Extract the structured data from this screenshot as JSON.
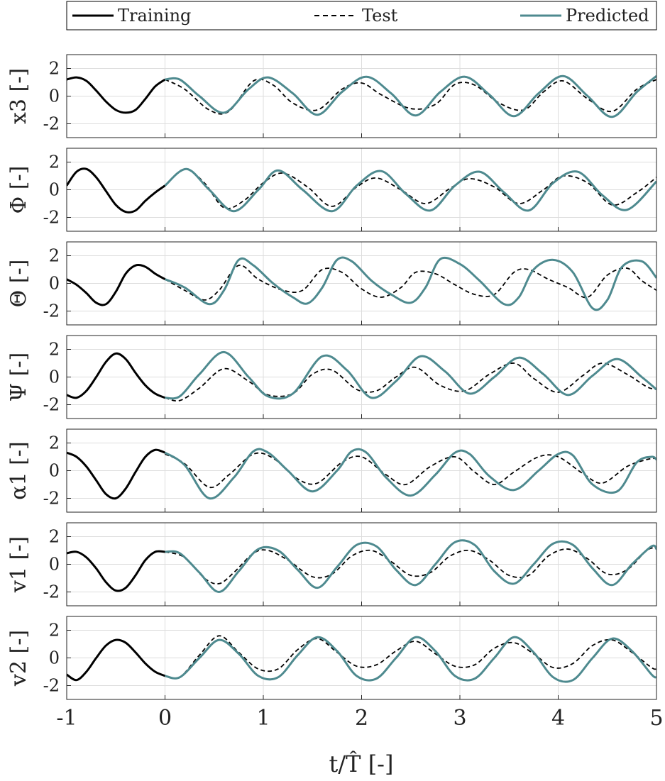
{
  "legend": {
    "entries": [
      {
        "label": "Training",
        "style": "solid",
        "color": "#000000"
      },
      {
        "label": "Test",
        "style": "dashed",
        "color": "#000000"
      },
      {
        "label": "Predicted",
        "style": "solid",
        "color": "#4e8a8f"
      }
    ]
  },
  "colors": {
    "training": "#000000",
    "test": "#000000",
    "predicted": "#4e8a8f",
    "grid": "#dddddd"
  },
  "chart_data": {
    "type": "line",
    "xlabel": "t/T̂ [-]",
    "xlim": [
      -1,
      5
    ],
    "xticks": [
      -1,
      0,
      1,
      2,
      3,
      4,
      5
    ],
    "xtick_labels": [
      "-1",
      "0",
      "1",
      "2",
      "3",
      "4",
      "5"
    ],
    "grid": true,
    "legend_placement": "top",
    "panels": [
      {
        "ylabel": "x3 [-]",
        "ylim": [
          -3,
          3
        ],
        "yticks": [
          -2,
          0,
          2
        ],
        "ytick_labels": [
          "-2",
          "0",
          "2"
        ],
        "training": {
          "x": [
            -1,
            -0.9,
            -0.8,
            -0.7,
            -0.6,
            -0.5,
            -0.4,
            -0.3,
            -0.2,
            -0.1,
            0
          ],
          "y": [
            1.2,
            1.35,
            1.1,
            0.4,
            -0.4,
            -1.0,
            -1.2,
            -1.0,
            -0.2,
            0.7,
            1.2
          ]
        },
        "test": {
          "x": [
            0,
            0.2,
            0.45,
            0.65,
            0.9,
            1.1,
            1.3,
            1.55,
            1.8,
            2.0,
            2.2,
            2.5,
            2.75,
            2.95,
            3.15,
            3.4,
            3.65,
            3.85,
            4.05,
            4.3,
            4.55,
            4.8,
            5.0
          ],
          "y": [
            1.2,
            0.5,
            -1.0,
            -1.1,
            1.1,
            0.8,
            -0.5,
            -1.0,
            0.5,
            0.95,
            0.1,
            -0.9,
            -0.6,
            0.85,
            0.8,
            -0.5,
            -1.0,
            0.3,
            1.1,
            -0.2,
            -1.1,
            0.5,
            1.2
          ]
        },
        "predicted": {
          "x": [
            0,
            0.15,
            0.35,
            0.6,
            0.85,
            1.05,
            1.3,
            1.55,
            1.8,
            2.05,
            2.3,
            2.55,
            2.8,
            3.05,
            3.3,
            3.55,
            3.8,
            4.05,
            4.3,
            4.55,
            4.8,
            5.0
          ],
          "y": [
            1.2,
            1.2,
            0.0,
            -1.2,
            0.5,
            1.35,
            0.2,
            -1.35,
            0.3,
            1.4,
            0.2,
            -1.4,
            0.3,
            1.4,
            0.1,
            -1.45,
            0.2,
            1.45,
            0.0,
            -1.5,
            0.3,
            1.45
          ]
        }
      },
      {
        "ylabel": "Φ [-]",
        "ylim": [
          -3,
          3
        ],
        "yticks": [
          -2,
          0,
          2
        ],
        "ytick_labels": [
          "-2",
          "0",
          "2"
        ],
        "training": {
          "x": [
            -1,
            -0.9,
            -0.8,
            -0.7,
            -0.6,
            -0.5,
            -0.4,
            -0.3,
            -0.2,
            -0.1,
            0
          ],
          "y": [
            0.3,
            1.3,
            1.5,
            0.9,
            -0.1,
            -1.1,
            -1.6,
            -1.5,
            -0.8,
            -0.2,
            0.3
          ]
        },
        "test": {
          "x": [
            0,
            0.2,
            0.4,
            0.6,
            0.8,
            1.0,
            1.2,
            1.45,
            1.7,
            1.95,
            2.15,
            2.4,
            2.65,
            2.9,
            3.1,
            3.35,
            3.6,
            3.85,
            4.05,
            4.3,
            4.55,
            4.8,
            5.0
          ],
          "y": [
            0.3,
            1.5,
            0.5,
            -1.3,
            -0.8,
            0.5,
            1.2,
            0.2,
            -1.2,
            0.2,
            0.85,
            0.0,
            -1.0,
            0.1,
            0.8,
            0.2,
            -1.0,
            0.0,
            1.0,
            0.5,
            -1.1,
            -0.2,
            0.9
          ]
        },
        "predicted": {
          "x": [
            0,
            0.22,
            0.45,
            0.7,
            0.95,
            1.15,
            1.4,
            1.7,
            1.95,
            2.2,
            2.45,
            2.7,
            2.95,
            3.2,
            3.45,
            3.7,
            3.95,
            4.2,
            4.45,
            4.7,
            5.0
          ],
          "y": [
            0.3,
            1.5,
            0.0,
            -1.55,
            0.0,
            1.4,
            0.0,
            -1.55,
            0.3,
            1.35,
            -0.3,
            -1.5,
            0.3,
            1.3,
            -0.2,
            -1.5,
            0.5,
            1.3,
            -0.4,
            -1.45,
            0.6
          ]
        }
      },
      {
        "ylabel": "Θ [-]",
        "ylim": [
          -3,
          3
        ],
        "yticks": [
          -2,
          0,
          2
        ],
        "ytick_labels": [
          "-2",
          "0",
          "2"
        ],
        "training": {
          "x": [
            -1,
            -0.9,
            -0.8,
            -0.7,
            -0.6,
            -0.5,
            -0.4,
            -0.3,
            -0.2,
            -0.1,
            0
          ],
          "y": [
            0.3,
            -0.1,
            -0.7,
            -1.4,
            -1.5,
            -0.6,
            0.7,
            1.3,
            1.2,
            0.7,
            0.3
          ]
        },
        "test": {
          "x": [
            0,
            0.2,
            0.4,
            0.55,
            0.75,
            0.95,
            1.2,
            1.4,
            1.6,
            1.8,
            2.0,
            2.2,
            2.4,
            2.55,
            2.75,
            2.95,
            3.15,
            3.35,
            3.55,
            3.7,
            3.9,
            4.1,
            4.3,
            4.5,
            4.7,
            4.85,
            5.0
          ],
          "y": [
            0.3,
            -0.5,
            -1.2,
            -0.5,
            1.3,
            0.3,
            -0.5,
            -0.5,
            1.0,
            0.8,
            -0.4,
            -1.0,
            -0.3,
            0.8,
            0.7,
            -0.1,
            -0.8,
            -0.8,
            0.8,
            1.0,
            0.3,
            -0.3,
            -1.0,
            0.6,
            1.1,
            0.2,
            -0.5
          ]
        },
        "predicted": {
          "x": [
            0,
            0.2,
            0.45,
            0.6,
            0.75,
            0.9,
            1.1,
            1.3,
            1.45,
            1.6,
            1.75,
            1.9,
            2.1,
            2.3,
            2.5,
            2.65,
            2.8,
            3.0,
            3.2,
            3.45,
            3.6,
            3.75,
            3.95,
            4.15,
            4.35,
            4.5,
            4.65,
            4.85,
            5.0
          ],
          "y": [
            0.3,
            -0.3,
            -1.5,
            -0.5,
            1.7,
            1.3,
            0.0,
            -1.0,
            -1.45,
            -0.3,
            1.7,
            1.6,
            0.2,
            -0.8,
            -1.4,
            -0.3,
            1.75,
            1.4,
            0.2,
            -1.5,
            -1.0,
            1.0,
            1.7,
            0.8,
            -1.8,
            -1.2,
            1.2,
            1.6,
            0.4
          ]
        }
      },
      {
        "ylabel": "Ψ [-]",
        "ylim": [
          -3,
          3
        ],
        "yticks": [
          -2,
          0,
          2
        ],
        "ytick_labels": [
          "-2",
          "0",
          "2"
        ],
        "training": {
          "x": [
            -1,
            -0.9,
            -0.8,
            -0.7,
            -0.6,
            -0.5,
            -0.4,
            -0.3,
            -0.2,
            -0.1,
            0
          ],
          "y": [
            -1.3,
            -1.5,
            -1.0,
            0.0,
            1.1,
            1.7,
            1.3,
            0.3,
            -0.6,
            -1.2,
            -1.5
          ]
        },
        "test": {
          "x": [
            0,
            0.15,
            0.35,
            0.6,
            0.85,
            1.05,
            1.3,
            1.5,
            1.7,
            1.95,
            2.15,
            2.35,
            2.55,
            2.8,
            3.05,
            3.3,
            3.55,
            3.75,
            4.0,
            4.25,
            4.45,
            4.7,
            4.9,
            5.0
          ],
          "y": [
            -1.5,
            -1.7,
            -0.8,
            0.6,
            -0.3,
            -1.3,
            -1.2,
            0.2,
            0.5,
            -0.9,
            -1.0,
            0.0,
            0.7,
            -0.6,
            -1.0,
            0.2,
            1.0,
            -0.1,
            -1.1,
            0.1,
            1.0,
            0.2,
            -0.7,
            -0.9
          ]
        },
        "predicted": {
          "x": [
            0,
            0.15,
            0.35,
            0.6,
            0.85,
            1.05,
            1.3,
            1.6,
            1.85,
            2.1,
            2.35,
            2.6,
            2.85,
            3.1,
            3.35,
            3.6,
            3.85,
            4.1,
            4.35,
            4.6,
            4.85,
            5.0
          ],
          "y": [
            -1.5,
            -1.4,
            0.2,
            1.8,
            0.0,
            -1.4,
            -1.2,
            1.5,
            0.5,
            -1.5,
            -0.3,
            1.5,
            0.4,
            -1.2,
            0.0,
            1.4,
            0.2,
            -1.3,
            0.1,
            1.3,
            0.0,
            -0.9
          ]
        }
      },
      {
        "ylabel": "α1 [-]",
        "ylim": [
          -3,
          3
        ],
        "yticks": [
          -2,
          0,
          2
        ],
        "ytick_labels": [
          "-2",
          "0",
          "2"
        ],
        "training": {
          "x": [
            -1,
            -0.9,
            -0.8,
            -0.7,
            -0.6,
            -0.5,
            -0.4,
            -0.3,
            -0.2,
            -0.1,
            0
          ],
          "y": [
            1.3,
            1.0,
            0.3,
            -0.7,
            -1.7,
            -2.0,
            -1.3,
            -0.1,
            1.0,
            1.5,
            1.3
          ]
        },
        "test": {
          "x": [
            0,
            0.2,
            0.45,
            0.65,
            0.9,
            1.1,
            1.35,
            1.55,
            1.8,
            2.0,
            2.25,
            2.45,
            2.7,
            2.95,
            3.15,
            3.35,
            3.55,
            3.8,
            4.0,
            4.25,
            4.45,
            4.7,
            4.9,
            5.0
          ],
          "y": [
            1.2,
            0.5,
            -1.2,
            -0.3,
            1.2,
            0.9,
            -0.6,
            -0.9,
            0.6,
            1.0,
            -0.3,
            -1.0,
            0.3,
            1.0,
            -0.1,
            -1.0,
            -0.1,
            1.0,
            1.0,
            -0.2,
            -0.9,
            0.3,
            0.8,
            0.9
          ]
        },
        "predicted": {
          "x": [
            0,
            0.2,
            0.45,
            0.7,
            0.9,
            1.05,
            1.25,
            1.5,
            1.75,
            1.9,
            2.05,
            2.25,
            2.5,
            2.75,
            2.95,
            3.1,
            3.3,
            3.55,
            3.8,
            4.0,
            4.15,
            4.35,
            4.6,
            4.8,
            4.95,
            5.0
          ],
          "y": [
            1.3,
            0.4,
            -2.0,
            -0.5,
            1.4,
            1.3,
            0.0,
            -1.5,
            0.0,
            1.4,
            1.3,
            -0.5,
            -1.8,
            -0.3,
            1.3,
            1.2,
            -0.4,
            -1.4,
            0.0,
            1.2,
            1.1,
            -1.0,
            -1.5,
            0.6,
            1.0,
            0.8
          ]
        }
      },
      {
        "ylabel": "v1 [-]",
        "ylim": [
          -3,
          3
        ],
        "yticks": [
          -2,
          0,
          2
        ],
        "ytick_labels": [
          "-2",
          "0",
          "2"
        ],
        "training": {
          "x": [
            -1,
            -0.9,
            -0.8,
            -0.7,
            -0.6,
            -0.5,
            -0.4,
            -0.3,
            -0.2,
            -0.1,
            0
          ],
          "y": [
            0.8,
            0.9,
            0.5,
            -0.3,
            -1.3,
            -1.9,
            -1.7,
            -0.8,
            0.3,
            0.9,
            0.9
          ]
        },
        "test": {
          "x": [
            0,
            0.2,
            0.4,
            0.55,
            0.7,
            0.9,
            1.05,
            1.25,
            1.5,
            1.7,
            1.9,
            2.1,
            2.3,
            2.5,
            2.7,
            2.9,
            3.1,
            3.3,
            3.5,
            3.7,
            3.9,
            4.1,
            4.3,
            4.5,
            4.7,
            4.9,
            5.0
          ],
          "y": [
            0.9,
            0.5,
            -1.0,
            -1.4,
            -0.6,
            0.8,
            1.0,
            0.3,
            -0.9,
            -0.7,
            0.6,
            1.0,
            0.2,
            -0.8,
            -0.6,
            0.6,
            1.0,
            0.3,
            -0.8,
            -0.8,
            0.6,
            1.1,
            0.4,
            -0.7,
            -0.4,
            1.0,
            1.2
          ]
        },
        "predicted": {
          "x": [
            0,
            0.15,
            0.35,
            0.55,
            0.75,
            0.95,
            1.15,
            1.35,
            1.55,
            1.75,
            1.95,
            2.15,
            2.35,
            2.55,
            2.75,
            2.95,
            3.15,
            3.35,
            3.55,
            3.75,
            3.95,
            4.15,
            4.35,
            4.55,
            4.75,
            4.95,
            5.0
          ],
          "y": [
            0.9,
            0.8,
            -0.6,
            -2.0,
            -0.5,
            1.1,
            1.0,
            -0.4,
            -1.7,
            -0.2,
            1.4,
            1.3,
            -0.4,
            -1.5,
            0.0,
            1.6,
            1.4,
            -0.5,
            -1.4,
            0.0,
            1.5,
            1.4,
            -0.3,
            -1.5,
            0.0,
            1.3,
            1.1
          ]
        }
      },
      {
        "ylabel": "v2 [-]",
        "ylim": [
          -3,
          3
        ],
        "yticks": [
          -2,
          0,
          2
        ],
        "ytick_labels": [
          "-2",
          "0",
          "2"
        ],
        "training": {
          "x": [
            -1,
            -0.9,
            -0.8,
            -0.7,
            -0.6,
            -0.5,
            -0.4,
            -0.3,
            -0.2,
            -0.1,
            0
          ],
          "y": [
            -1.2,
            -1.6,
            -1.0,
            0.0,
            0.9,
            1.3,
            1.1,
            0.4,
            -0.4,
            -1.0,
            -1.3
          ]
        },
        "test": {
          "x": [
            0,
            0.15,
            0.35,
            0.55,
            0.75,
            0.95,
            1.15,
            1.35,
            1.55,
            1.75,
            1.95,
            2.15,
            2.35,
            2.55,
            2.75,
            2.95,
            3.15,
            3.35,
            3.55,
            3.75,
            3.95,
            4.15,
            4.35,
            4.55,
            4.75,
            4.95,
            5.0
          ],
          "y": [
            -1.3,
            -1.4,
            0.2,
            1.6,
            0.4,
            -0.8,
            -0.8,
            0.6,
            1.4,
            0.4,
            -0.6,
            -0.5,
            0.5,
            1.2,
            0.3,
            -0.6,
            -0.5,
            0.7,
            1.1,
            0.3,
            -0.7,
            -0.4,
            0.9,
            1.3,
            0.4,
            -0.7,
            -0.8
          ]
        },
        "predicted": {
          "x": [
            0,
            0.15,
            0.35,
            0.55,
            0.75,
            0.95,
            1.15,
            1.35,
            1.55,
            1.75,
            1.95,
            2.15,
            2.35,
            2.55,
            2.75,
            2.95,
            3.15,
            3.35,
            3.55,
            3.75,
            3.95,
            4.15,
            4.35,
            4.55,
            4.75,
            4.95,
            5.0
          ],
          "y": [
            -1.3,
            -1.4,
            0.0,
            1.3,
            0.3,
            -1.3,
            -1.4,
            0.2,
            1.5,
            0.5,
            -1.3,
            -1.5,
            0.0,
            1.5,
            0.5,
            -1.3,
            -1.5,
            0.0,
            1.5,
            0.4,
            -1.4,
            -1.6,
            0.0,
            1.4,
            0.5,
            -1.2,
            -1.4
          ]
        }
      }
    ]
  }
}
